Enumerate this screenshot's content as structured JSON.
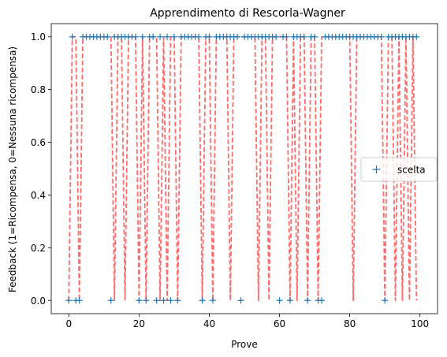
{
  "chart_data": {
    "type": "line",
    "title": "Apprendimento di Rescorla-Wagner",
    "xlabel": "Prove",
    "ylabel": "Feedback (1=Ricompensa, 0=Nessuna ricompensa)",
    "xlim": [
      -5,
      105
    ],
    "ylim": [
      -0.05,
      1.05
    ],
    "xticks": [
      0,
      20,
      40,
      60,
      80,
      100
    ],
    "yticks": [
      0.0,
      0.2,
      0.4,
      0.6,
      0.8,
      1.0
    ],
    "xtick_labels": [
      "0",
      "20",
      "40",
      "60",
      "80",
      "100"
    ],
    "ytick_labels": [
      "0.0",
      "0.2",
      "0.4",
      "0.6",
      "0.8",
      "1.0"
    ],
    "legend": {
      "position": "center-right",
      "entries": [
        "scelta"
      ]
    },
    "colors": {
      "scatter": "#1f77b4",
      "line": "#ff6a6a"
    },
    "series": [
      {
        "name": "scelta",
        "style": "marker-plus",
        "x": [
          0,
          1,
          2,
          3,
          4,
          5,
          6,
          7,
          8,
          9,
          10,
          11,
          12,
          13,
          14,
          15,
          16,
          17,
          18,
          19,
          20,
          21,
          22,
          23,
          24,
          25,
          26,
          27,
          28,
          29,
          30,
          31,
          32,
          33,
          34,
          35,
          36,
          37,
          38,
          39,
          40,
          41,
          42,
          43,
          44,
          45,
          46,
          47,
          48,
          49,
          50,
          51,
          52,
          53,
          54,
          55,
          56,
          57,
          58,
          59,
          60,
          61,
          62,
          63,
          64,
          65,
          66,
          67,
          68,
          69,
          70,
          71,
          72,
          73,
          74,
          75,
          76,
          77,
          78,
          79,
          80,
          81,
          82,
          83,
          84,
          85,
          86,
          87,
          88,
          89,
          90,
          91,
          92,
          93,
          94,
          95,
          96,
          97,
          98,
          99
        ],
        "y": [
          0,
          1,
          0,
          0,
          1,
          1,
          1,
          1,
          1,
          1,
          1,
          1,
          0,
          1,
          1,
          1,
          1,
          1,
          1,
          1,
          0,
          1,
          0,
          1,
          1,
          0,
          1,
          0,
          1,
          0,
          1,
          0,
          1,
          1,
          1,
          1,
          1,
          1,
          0,
          1,
          1,
          0,
          1,
          1,
          1,
          1,
          1,
          1,
          1,
          0,
          1,
          1,
          1,
          1,
          1,
          1,
          1,
          1,
          1,
          1,
          0,
          1,
          1,
          0,
          1,
          1,
          1,
          1,
          0,
          1,
          1,
          0,
          0,
          1,
          1,
          1,
          1,
          1,
          1,
          1,
          1,
          1,
          1,
          1,
          1,
          1,
          1,
          1,
          1,
          1,
          0,
          1,
          1,
          1,
          1,
          1,
          1,
          1,
          1,
          1
        ]
      },
      {
        "name": "",
        "style": "dashed-line",
        "x": [
          0,
          1,
          2,
          3,
          4,
          5,
          6,
          7,
          8,
          9,
          10,
          11,
          12,
          13,
          14,
          15,
          16,
          17,
          18,
          19,
          20,
          21,
          22,
          23,
          24,
          25,
          26,
          27,
          28,
          29,
          30,
          31,
          32,
          33,
          34,
          35,
          36,
          37,
          38,
          39,
          40,
          41,
          42,
          43,
          44,
          45,
          46,
          47,
          48,
          49,
          50,
          51,
          52,
          53,
          54,
          55,
          56,
          57,
          58,
          59,
          60,
          61,
          62,
          63,
          64,
          65,
          66,
          67,
          68,
          69,
          70,
          71,
          72,
          73,
          74,
          75,
          76,
          77,
          78,
          79,
          80,
          81,
          82,
          83,
          84,
          85,
          86,
          87,
          88,
          89,
          90,
          91,
          92,
          93,
          94,
          95,
          96,
          97,
          98,
          99
        ],
        "y": [
          0,
          1,
          1,
          0,
          1,
          1,
          1,
          1,
          1,
          1,
          1,
          1,
          1,
          0,
          1,
          1,
          0,
          1,
          1,
          1,
          0,
          1,
          0,
          1,
          1,
          1,
          0,
          1,
          0,
          1,
          1,
          0,
          1,
          1,
          1,
          1,
          1,
          1,
          0,
          1,
          1,
          0,
          1,
          1,
          1,
          1,
          0,
          1,
          1,
          1,
          1,
          1,
          1,
          1,
          0,
          1,
          1,
          0,
          1,
          1,
          1,
          1,
          1,
          0,
          1,
          0,
          1,
          1,
          0,
          1,
          1,
          0,
          1,
          1,
          1,
          1,
          1,
          1,
          1,
          1,
          1,
          0,
          1,
          1,
          1,
          1,
          1,
          1,
          1,
          1,
          0,
          1,
          1,
          0,
          1,
          0,
          1,
          0,
          1,
          0
        ]
      }
    ]
  }
}
